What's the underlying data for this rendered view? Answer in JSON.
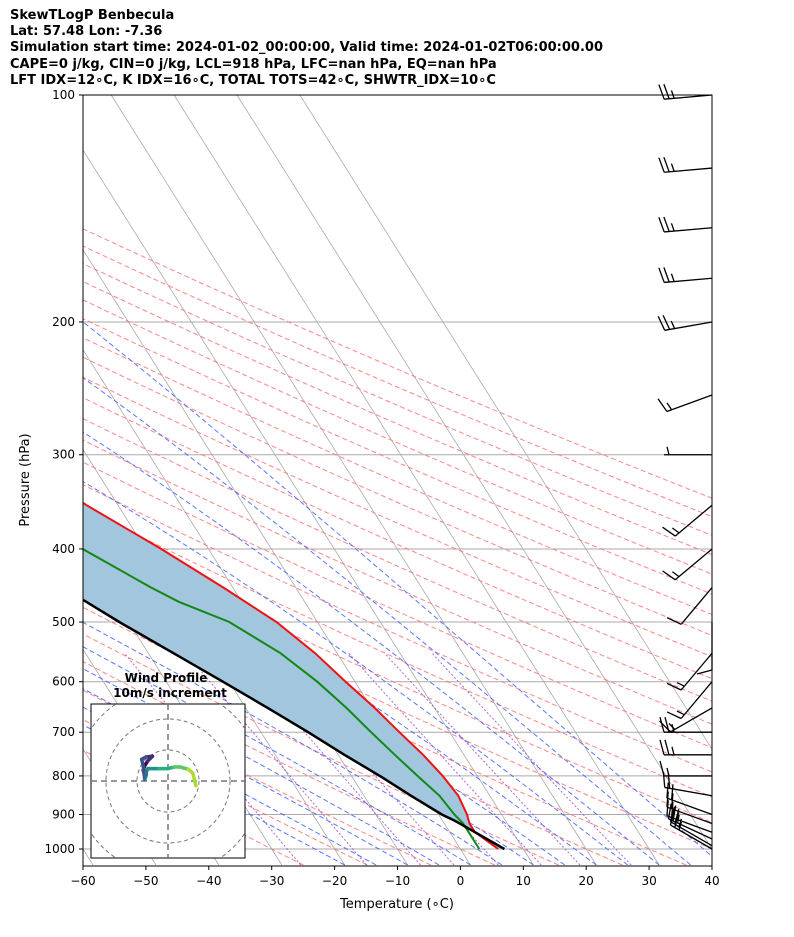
{
  "header": {
    "title": "SkewTLogP Benbecula",
    "location": "Lat: 57.48   Lon: -7.36",
    "times": "Simulation start time: 2024-01-02_00:00:00, Valid time: 2024-01-02T06:00:00.00",
    "stability": "CAPE=0 j/kg, CIN=0 j/kg, LCL=918 hPa, LFC=nan hPa, EQ=nan hPa",
    "indices": "LFT IDX=12∘C, K IDX=16∘C, TOTAL TOTS=42∘C, SHWTR_IDX=10∘C"
  },
  "chart_data": {
    "type": "line",
    "subtype": "skew-t log-p",
    "xlabel": "Temperature (∘C)",
    "ylabel": "Pressure (hPa)",
    "xlim": [
      -60,
      40
    ],
    "ylim": [
      1050,
      100
    ],
    "yscale": "log",
    "xticks": [
      -60,
      -50,
      -40,
      -30,
      -20,
      -10,
      0,
      10,
      20,
      30,
      40
    ],
    "yticks": [
      1000,
      900,
      800,
      700,
      600,
      500,
      400,
      300,
      200,
      100
    ],
    "grid": true,
    "colors": {
      "temperature": "#ee1111",
      "dewpoint": "#118811",
      "parcel": "#000000",
      "shading": "#a3c6df",
      "dry_adiabats": "#ff6666",
      "moist_adiabats": "#3355ff",
      "mixing_ratio": "#9944cc",
      "isotherms": "#aaaaaa"
    },
    "series": [
      {
        "key": "temperature",
        "p": [
          1000,
          950,
          925,
          900,
          850,
          800,
          750,
          700,
          650,
          600,
          550,
          500,
          450,
          400,
          350,
          320,
          300,
          250,
          200,
          150,
          100
        ],
        "x": [
          6.0,
          4.0,
          4.0,
          4.5,
          5.0,
          4.5,
          3.5,
          2.0,
          0.5,
          -1.5,
          -3.5,
          -6.5,
          -11.5,
          -17.5,
          -25.0,
          -29.0,
          -31.0,
          -38.5,
          -46.5,
          -54.0,
          -61.0
        ]
      },
      {
        "key": "dewpoint",
        "p": [
          1000,
          950,
          925,
          900,
          850,
          800,
          750,
          700,
          650,
          600,
          550,
          500,
          470,
          450,
          400,
          350,
          300,
          270,
          250,
          200,
          175,
          150,
          125,
          100
        ],
        "x": [
          3.0,
          3.0,
          3.0,
          2.5,
          2.0,
          0.5,
          -1.0,
          -2.5,
          -4.0,
          -6.0,
          -9.0,
          -14.0,
          -20.0,
          -23.0,
          -30.0,
          -38.0,
          -53.0,
          -58.0,
          -60.5,
          -66.5,
          -70.0,
          -73.0,
          -75.0,
          -76.0
        ]
      },
      {
        "key": "parcel",
        "p": [
          1000,
          950,
          918,
          900,
          850,
          800,
          750,
          700,
          650,
          600,
          550,
          500,
          450,
          400,
          350,
          300,
          250,
          200,
          150,
          100
        ],
        "x": [
          7.0,
          4.0,
          2.0,
          0.5,
          -2.5,
          -5.5,
          -9.0,
          -12.5,
          -16.5,
          -21.0,
          -26.0,
          -31.5,
          -37.0,
          -44.0,
          -51.0,
          -59.0,
          -68.0,
          -79.0,
          -93.0,
          -109.0
        ]
      }
    ],
    "wind_barbs": {
      "p": [
        1000,
        990,
        970,
        950,
        925,
        900,
        850,
        800,
        750,
        700,
        650,
        600,
        550,
        500,
        450,
        400,
        350,
        300,
        250,
        200,
        175,
        150,
        125,
        100
      ],
      "speed_kt": [
        25,
        25,
        25,
        20,
        20,
        20,
        20,
        15,
        25,
        25,
        15,
        15,
        15,
        10,
        10,
        15,
        15,
        5,
        15,
        25,
        25,
        25,
        25,
        25
      ],
      "dir_deg": [
        300,
        300,
        295,
        290,
        290,
        290,
        280,
        270,
        270,
        270,
        240,
        220,
        220,
        180,
        220,
        230,
        230,
        270,
        250,
        260,
        265,
        265,
        265,
        265
      ]
    },
    "hodograph": {
      "title": "Wind Profile",
      "subtitle": "10m/s increment",
      "u": [
        9.0,
        8.0,
        6.5,
        5.0,
        4.0,
        2.0,
        0.0,
        -1.5,
        -3.0,
        -4.5,
        -6.0,
        -6.5,
        -7.0,
        -7.0,
        -7.5,
        -8.0,
        -8.5,
        -7.0,
        -5.0,
        -5.5,
        -6.5,
        -7.5,
        -8.0,
        -7.5
      ],
      "v": [
        -1.5,
        2.5,
        3.8,
        4.2,
        4.5,
        4.5,
        4.0,
        4.0,
        4.0,
        4.0,
        4.0,
        4.0,
        3.0,
        2.0,
        0.5,
        5.0,
        7.0,
        7.8,
        8.0,
        7.5,
        6.5,
        5.0,
        3.5,
        2.0
      ]
    }
  }
}
